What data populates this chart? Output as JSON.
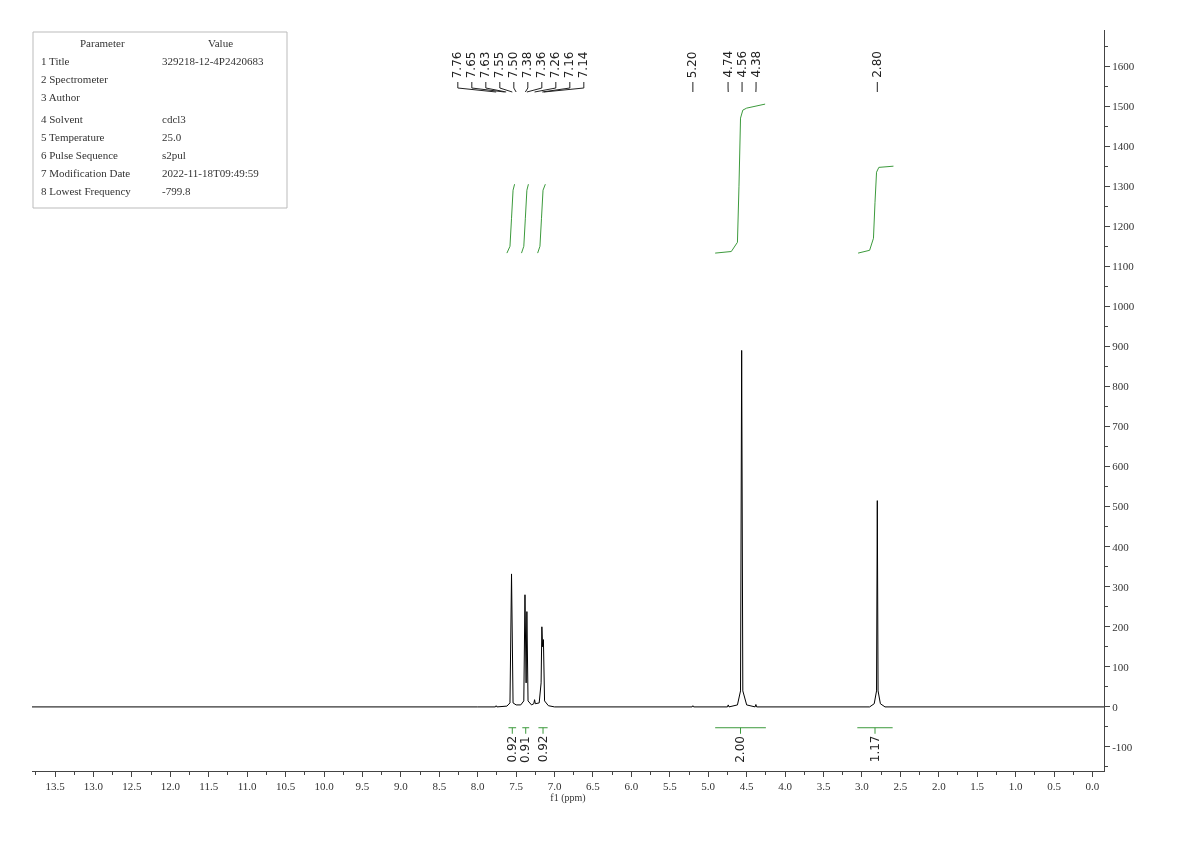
{
  "chart_data": {
    "type": "line",
    "xlabel": "f1 (ppm)",
    "xlim": [
      13.8,
      -0.15
    ],
    "ylim": [
      -160,
      1690
    ],
    "xticks": [
      13.5,
      {
        "value": 13,
        "label": "13.0"
      },
      12.5,
      {
        "value": 12,
        "label": "12.0"
      },
      11.5,
      {
        "value": 11,
        "label": "11.0"
      },
      10.5,
      {
        "value": 10,
        "label": "10.0"
      },
      9.5,
      {
        "value": 9,
        "label": "9.0"
      },
      8.5,
      {
        "value": 8,
        "label": "8.0"
      },
      7.5,
      {
        "value": 7,
        "label": "7.0"
      },
      6.5,
      {
        "value": 6,
        "label": "6.0"
      },
      5.5,
      {
        "value": 5,
        "label": "5.0"
      },
      4.5,
      {
        "value": 4,
        "label": "4.0"
      },
      3.5,
      {
        "value": 3,
        "label": "3.0"
      },
      2.5,
      {
        "value": 2,
        "label": "2.0"
      },
      1.5,
      {
        "value": 1,
        "label": "1.0"
      },
      0.5,
      {
        "value": 0,
        "label": "0.0"
      }
    ],
    "yticks": [
      -100,
      0,
      100,
      200,
      300,
      400,
      500,
      600,
      700,
      800,
      900,
      1000,
      1100,
      1200,
      1300,
      1400,
      1500,
      1600
    ],
    "marker": "none",
    "line_style": "solid",
    "series": [
      {
        "color": "#000000",
        "x": [
          13.8,
          8.0,
          7.77,
          7.76,
          7.75,
          7.62,
          7.58,
          7.56,
          7.54,
          7.5,
          7.44,
          7.4,
          7.385,
          7.37,
          7.36,
          7.345,
          7.3,
          7.27,
          7.26,
          7.25,
          7.2,
          7.175,
          7.165,
          7.155,
          7.145,
          7.13,
          7.08,
          7.0,
          5.21,
          5.2,
          5.19,
          4.75,
          4.74,
          4.73,
          4.62,
          4.58,
          4.565,
          4.55,
          4.5,
          4.39,
          4.38,
          4.37,
          2.9,
          2.84,
          2.81,
          2.8,
          2.79,
          2.76,
          2.7,
          -0.15
        ],
        "values": [
          0,
          0,
          0,
          3,
          0,
          2,
          10,
          332,
          10,
          5,
          5,
          15,
          280,
          60,
          238,
          15,
          5,
          8,
          18,
          8,
          10,
          60,
          200,
          150,
          168,
          15,
          3,
          0,
          0,
          3,
          0,
          0,
          5,
          0,
          5,
          40,
          890,
          40,
          5,
          0,
          6,
          0,
          0,
          8,
          40,
          515,
          40,
          8,
          0,
          0
        ]
      },
      {
        "color": "#3c9a3c",
        "x": [
          7.62,
          7.58,
          7.56,
          7.54,
          7.52
        ],
        "values": [
          1133,
          1150,
          1220,
          1290,
          1305
        ]
      },
      {
        "color": "#3c9a3c",
        "x": [
          7.43,
          7.4,
          7.38,
          7.36,
          7.34
        ],
        "values": [
          1133,
          1150,
          1220,
          1290,
          1305
        ]
      },
      {
        "color": "#3c9a3c",
        "x": [
          7.22,
          7.19,
          7.17,
          7.15,
          7.12
        ],
        "values": [
          1133,
          1150,
          1220,
          1290,
          1305
        ]
      },
      {
        "color": "#3c9a3c",
        "x": [
          4.91,
          4.7,
          4.62,
          4.6,
          4.58,
          4.55,
          4.5,
          4.26
        ],
        "values": [
          1133,
          1137,
          1160,
          1300,
          1470,
          1490,
          1495,
          1505
        ]
      },
      {
        "color": "#3c9a3c",
        "x": [
          3.05,
          2.9,
          2.85,
          2.83,
          2.81,
          2.78,
          2.59
        ],
        "values": [
          1133,
          1140,
          1170,
          1260,
          1335,
          1347,
          1350
        ]
      },
      {
        "color": "#3c9a3c",
        "x": [
          7.6,
          7.5
        ],
        "values": [
          -52,
          -52
        ]
      },
      {
        "color": "#3c9a3c",
        "x": [
          7.42,
          7.33
        ],
        "values": [
          -52,
          -52
        ]
      },
      {
        "color": "#3c9a3c",
        "x": [
          7.21,
          7.09
        ],
        "values": [
          -52,
          -52
        ]
      },
      {
        "color": "#3c9a3c",
        "x": [
          4.91,
          4.25
        ],
        "values": [
          -52,
          -52
        ]
      },
      {
        "color": "#3c9a3c",
        "x": [
          3.06,
          2.6
        ],
        "values": [
          -52,
          -52
        ]
      }
    ],
    "annotations": [
      "Parameter\tValue",
      "1 Title\t329218-12-4P2420683",
      "2 Spectrometer",
      "3 Author",
      "4 Solvent\tcdcl3",
      "5 Temperature\t25.0",
      "6 Pulse Sequence\ts2pul",
      "7 Modification Date\t2022-11-18T09:49:59",
      "8 Lowest Frequency\t-799.8",
      {
        "text": "7.76",
        "x": 7.76
      },
      {
        "text": "7.65",
        "x": 7.65
      },
      {
        "text": "7.63",
        "x": 7.63
      },
      {
        "text": "7.55",
        "x": 7.55
      },
      {
        "text": "7.50",
        "x": 7.5
      },
      {
        "text": "7.38",
        "x": 7.38
      },
      {
        "text": "7.36",
        "x": 7.36
      },
      {
        "text": "7.26",
        "x": 7.26
      },
      {
        "text": "7.16",
        "x": 7.16
      },
      {
        "text": "7.14",
        "x": 7.14
      },
      {
        "text": "5.20",
        "x": 5.2
      },
      {
        "text": "4.74",
        "x": 4.74
      },
      {
        "text": "4.56",
        "x": 4.56
      },
      {
        "text": "4.38",
        "x": 4.38
      },
      {
        "text": "2.80",
        "x": 2.8
      },
      {
        "text": "0.92",
        "x": 7.55,
        "y": -52
      },
      {
        "text": "0.91",
        "x": 7.375,
        "y": -52
      },
      {
        "text": "0.92",
        "x": 7.15,
        "y": -52
      },
      {
        "text": "2.00",
        "x": 4.58,
        "y": -52
      },
      {
        "text": "1.17",
        "x": 2.83,
        "y": -52
      }
    ]
  }
}
